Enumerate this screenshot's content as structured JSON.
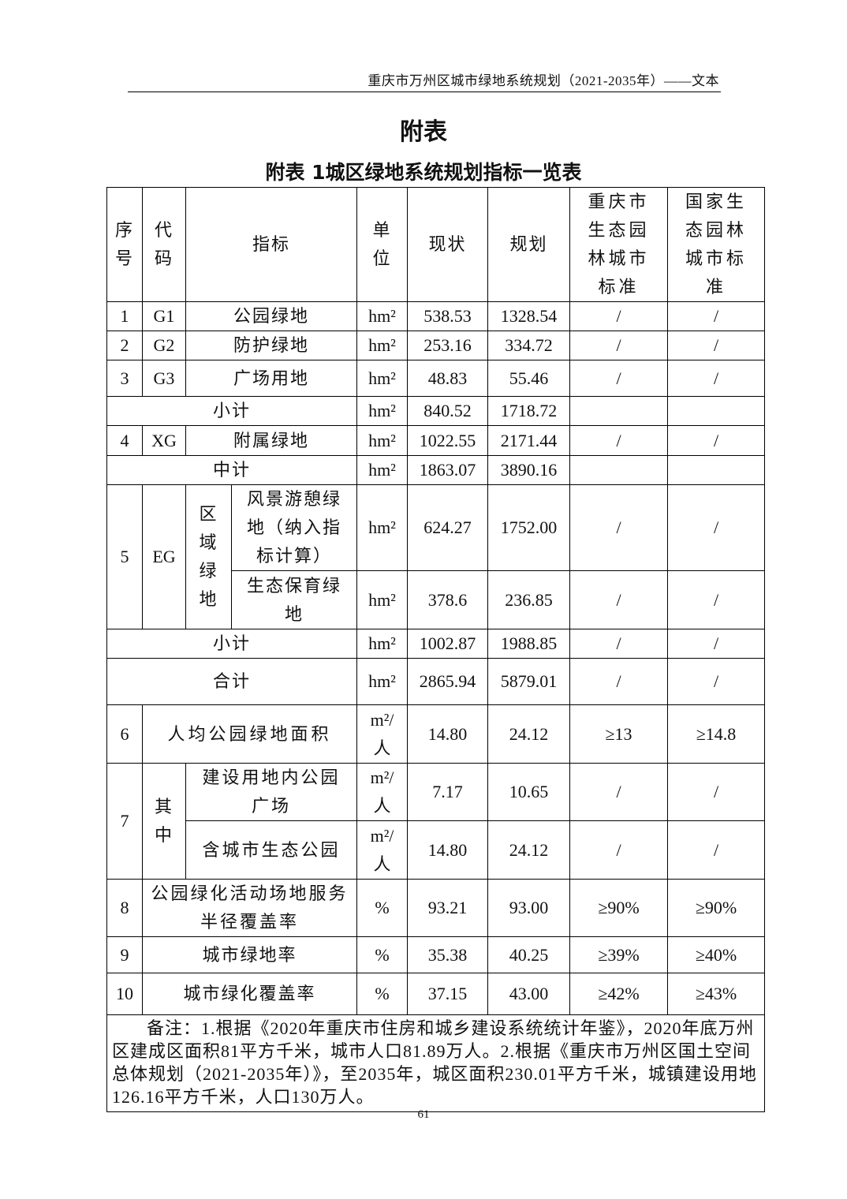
{
  "header": {
    "running_head": "重庆市万州区城市绿地系统规划（2021-2035年）——文本",
    "page_title": "附表",
    "table_title": "附表  1城区绿地系统规划指标一览表",
    "page_number": "61"
  },
  "columns": [
    "序号",
    "代码",
    "指标",
    "单位",
    "现状",
    "规划",
    "重庆市生态园林城市标准",
    "国家生态园林城市标准"
  ],
  "rows": [
    {
      "seq": "1",
      "code": "G1",
      "name": "公园绿地",
      "unit": "hm²",
      "current": "538.53",
      "plan": "1328.54",
      "cq": "/",
      "nat": "/"
    },
    {
      "seq": "2",
      "code": "G2",
      "name": "防护绿地",
      "unit": "hm²",
      "current": "253.16",
      "plan": "334.72",
      "cq": "/",
      "nat": "/"
    },
    {
      "seq": "3",
      "code": "G3",
      "name": "广场用地",
      "unit": "hm²",
      "current": "48.83",
      "plan": "55.46",
      "cq": "/",
      "nat": "/"
    },
    {
      "name": "小计",
      "unit": "hm²",
      "current": "840.52",
      "plan": "1718.72",
      "cq": "",
      "nat": ""
    },
    {
      "seq": "4",
      "code": "XG",
      "name": "附属绿地",
      "unit": "hm²",
      "current": "1022.55",
      "plan": "2171.44",
      "cq": "/",
      "nat": "/"
    },
    {
      "name": "中计",
      "unit": "hm²",
      "current": "1863.07",
      "plan": "3890.16",
      "cq": "",
      "nat": ""
    },
    {
      "seq": "5",
      "code": "EG",
      "group": "区域绿地",
      "name": "风景游憩绿地（纳入指标计算）",
      "unit": "hm²",
      "current": "624.27",
      "plan": "1752.00",
      "cq": "/",
      "nat": "/"
    },
    {
      "name": "生态保育绿地",
      "unit": "hm²",
      "current": "378.6",
      "plan": "236.85",
      "cq": "/",
      "nat": "/"
    },
    {
      "name": "小计",
      "unit": "hm²",
      "current": "1002.87",
      "plan": "1988.85",
      "cq": "/",
      "nat": "/"
    },
    {
      "name": "合计",
      "unit": "hm²",
      "current": "2865.94",
      "plan": "5879.01",
      "cq": "/",
      "nat": "/"
    },
    {
      "seq": "6",
      "name": "人均公园绿地面积",
      "unit": "m²/人",
      "current": "14.80",
      "plan": "24.12",
      "cq": "≥13",
      "nat": "≥14.8"
    },
    {
      "seq": "7",
      "group": "其中",
      "name": "建设用地内公园广场",
      "unit": "m²/人",
      "current": "7.17",
      "plan": "10.65",
      "cq": "/",
      "nat": "/"
    },
    {
      "name": "含城市生态公园",
      "unit": "m²/人",
      "current": "14.80",
      "plan": "24.12",
      "cq": "/",
      "nat": "/"
    },
    {
      "seq": "8",
      "name": "公园绿化活动场地服务半径覆盖率",
      "unit": "%",
      "current": "93.21",
      "plan": "93.00",
      "cq": "≥90%",
      "nat": "≥90%"
    },
    {
      "seq": "9",
      "name": "城市绿地率",
      "unit": "%",
      "current": "35.38",
      "plan": "40.25",
      "cq": "≥39%",
      "nat": "≥40%"
    },
    {
      "seq": "10",
      "name": "城市绿化覆盖率",
      "unit": "%",
      "current": "37.15",
      "plan": "43.00",
      "cq": "≥42%",
      "nat": "≥43%"
    }
  ],
  "notes": "备注：1.根据《2020年重庆市住房和城乡建设系统统计年鉴》，2020年底万州区建成区面积81平方千米，城市人口81.89万人。2.根据《重庆市万州区国土空间总体规划（2021-2035年）》，至2035年，城区面积230.01平方千米，城镇建设用地126.16平方千米，人口130万人。"
}
